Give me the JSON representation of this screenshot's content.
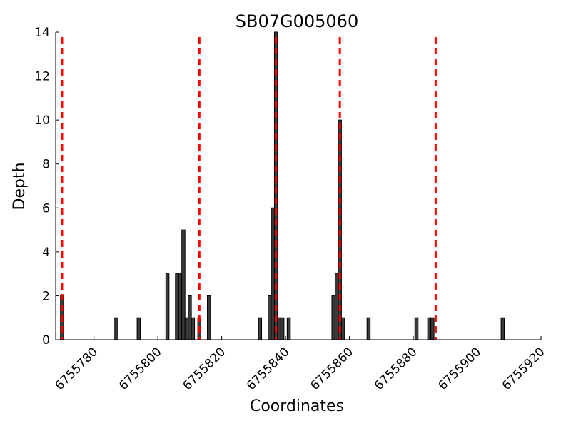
{
  "chart_data": {
    "type": "bar",
    "title": "SB07G005060",
    "xlabel": "Coordinates",
    "ylabel": "Depth",
    "xlim": [
      6755768,
      6755920
    ],
    "ylim": [
      0,
      14
    ],
    "x_ticks": [
      6755780,
      6755800,
      6755820,
      6755840,
      6755860,
      6755880,
      6755900,
      6755920
    ],
    "y_ticks": [
      0,
      2,
      4,
      6,
      8,
      10,
      12,
      14
    ],
    "grid": false,
    "bar_width": 1,
    "series": [
      {
        "x": [
          6755770,
          6755787,
          6755794,
          6755803,
          6755806,
          6755807,
          6755808,
          6755809,
          6755810,
          6755811,
          6755813,
          6755816,
          6755841,
          6755832,
          6755835,
          6755836,
          6755837,
          6755838,
          6755839,
          6755855,
          6755856,
          6755857,
          6755858,
          6755866,
          6755881,
          6755885,
          6755886,
          6755908
        ],
        "values": [
          2,
          1,
          1,
          3,
          3,
          3,
          5,
          1,
          2,
          1,
          1,
          2,
          1,
          1,
          2,
          6,
          14,
          1,
          1,
          2,
          3,
          10,
          1,
          1,
          1,
          1,
          1,
          1
        ]
      }
    ],
    "markers": {
      "style": "dashed",
      "color": "#ff0000",
      "x": [
        6755770,
        6755813,
        6755837,
        6755857,
        6755887
      ]
    }
  }
}
